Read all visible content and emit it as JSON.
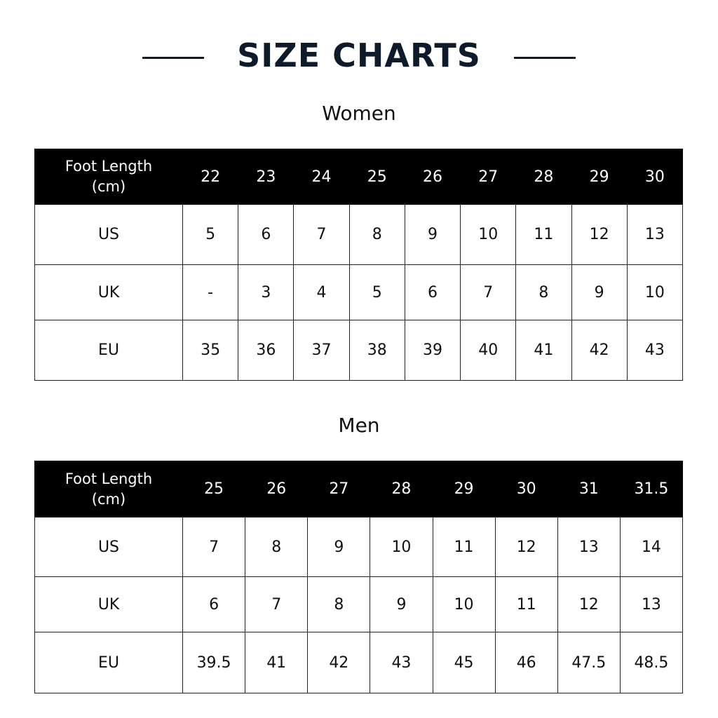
{
  "title": "SIZE CHARTS",
  "colors": {
    "title": "#0f1a2a",
    "header_bg": "#000000",
    "header_text": "#ffffff"
  },
  "tables": [
    {
      "heading": "Women",
      "header_label": [
        "Foot Length",
        "(cm)"
      ],
      "foot_length": [
        "22",
        "23",
        "24",
        "25",
        "26",
        "27",
        "28",
        "29",
        "30"
      ],
      "rows": [
        {
          "label": "US",
          "values": [
            "5",
            "6",
            "7",
            "8",
            "9",
            "10",
            "11",
            "12",
            "13"
          ]
        },
        {
          "label": "UK",
          "values": [
            "-",
            "3",
            "4",
            "5",
            "6",
            "7",
            "8",
            "9",
            "10"
          ]
        },
        {
          "label": "EU",
          "values": [
            "35",
            "36",
            "37",
            "38",
            "39",
            "40",
            "41",
            "42",
            "43"
          ]
        }
      ]
    },
    {
      "heading": "Men",
      "header_label": [
        "Foot Length",
        "(cm)"
      ],
      "foot_length": [
        "25",
        "26",
        "27",
        "28",
        "29",
        "30",
        "31",
        "31.5"
      ],
      "rows": [
        {
          "label": "US",
          "values": [
            "7",
            "8",
            "9",
            "10",
            "11",
            "12",
            "13",
            "14"
          ]
        },
        {
          "label": "UK",
          "values": [
            "6",
            "7",
            "8",
            "9",
            "10",
            "11",
            "12",
            "13"
          ]
        },
        {
          "label": "EU",
          "values": [
            "39.5",
            "41",
            "42",
            "43",
            "45",
            "46",
            "47.5",
            "48.5"
          ]
        }
      ]
    }
  ]
}
